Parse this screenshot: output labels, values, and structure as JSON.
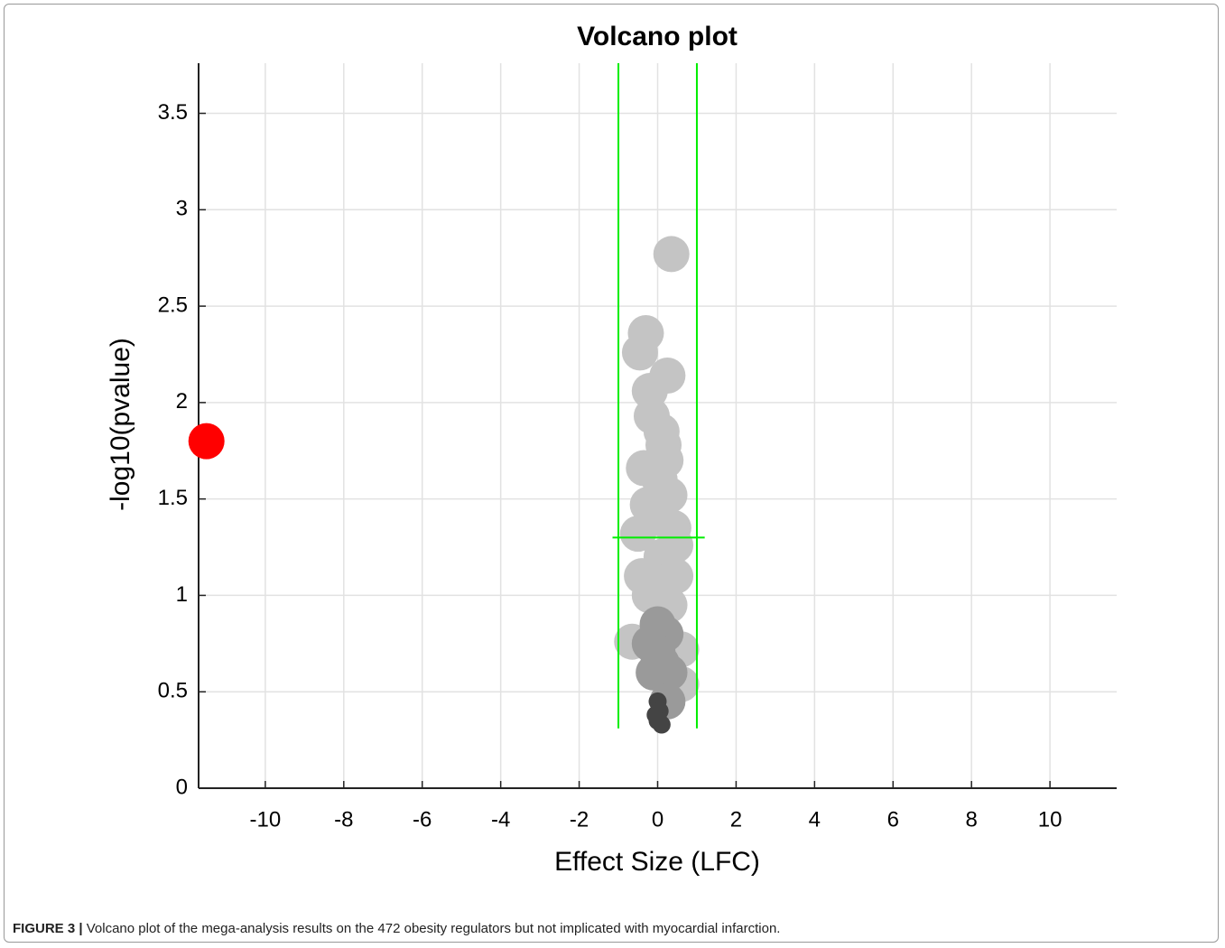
{
  "chart_data": {
    "type": "scatter",
    "title": "Volcano plot",
    "x_label": "Effect Size (LFC)",
    "y_label": "-log10(pvalue)",
    "xlim": [
      -11.7,
      11.7
    ],
    "ylim": [
      0,
      3.76
    ],
    "xticks": [
      -10,
      -8,
      -6,
      -4,
      -2,
      0,
      2,
      4,
      6,
      8,
      10
    ],
    "yticks": [
      0,
      0.5,
      1,
      1.5,
      2,
      2.5,
      3,
      3.5
    ],
    "grid": true,
    "series": [
      {
        "color": "#c4c4c4",
        "x": [
          0.35,
          -0.3,
          -0.45,
          0.25,
          -0.2,
          -0.15,
          0.1,
          0.15,
          0.2,
          -0.35,
          0.05,
          0.3,
          -0.25,
          -0.1,
          0.4,
          -0.5,
          0.45,
          0.1,
          -0.4,
          0.45,
          -0.2,
          0.3,
          -0.65,
          0.6,
          0.6
        ],
        "values": [
          2.77,
          2.36,
          2.26,
          2.14,
          2.06,
          1.93,
          1.85,
          1.78,
          1.7,
          1.66,
          1.6,
          1.52,
          1.47,
          1.4,
          1.35,
          1.32,
          1.26,
          1.2,
          1.1,
          1.1,
          1.0,
          0.95,
          0.76,
          0.72,
          0.54
        ]
      },
      {
        "color": "#9a9a9a",
        "x": [
          0,
          0.2,
          -0.2,
          0,
          0.1,
          -0.1,
          0.3,
          0.25
        ],
        "values": [
          0.85,
          0.8,
          0.75,
          0.7,
          0.65,
          0.6,
          0.6,
          0.45
        ]
      },
      {
        "color": "#444444",
        "x": [
          0,
          0.05,
          -0.05,
          0,
          0.1
        ],
        "values": [
          0.45,
          0.4,
          0.38,
          0.35,
          0.33
        ]
      },
      {
        "color": "#ff0000",
        "x": [
          -11.5
        ],
        "values": [
          1.8
        ]
      }
    ],
    "threshold_color": "#00ee00",
    "threshold_lines": [
      {
        "x": [
          -1,
          -1
        ],
        "y": [
          0.31,
          3.76
        ]
      },
      {
        "x": [
          1,
          1
        ],
        "y": [
          0.31,
          3.76
        ]
      },
      {
        "x": [
          -1.15,
          1.2
        ],
        "y": [
          1.3,
          1.3
        ]
      }
    ]
  },
  "caption": {
    "label": "FIGURE 3 |",
    "text": "Volcano plot of the mega-analysis results on the 472 obesity regulators but not implicated with myocardial infarction."
  }
}
